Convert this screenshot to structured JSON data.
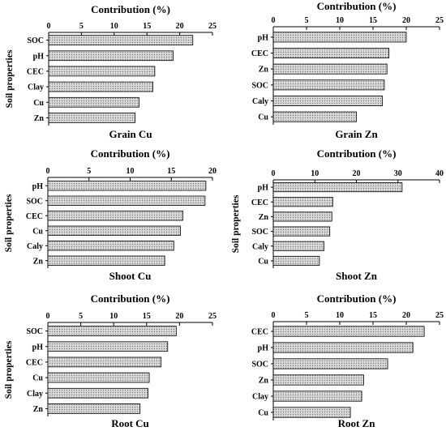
{
  "figure": {
    "panel_order_note": ""
  },
  "chart_data": [
    {
      "type": "bar",
      "orientation": "horizontal",
      "title": "Contribution (%)",
      "xlabel": "Grain Cu",
      "ylabel": "Soil properties",
      "categories": [
        "SOC",
        "pH",
        "CEC",
        "Clay",
        "Cu",
        "Zn"
      ],
      "values": [
        22,
        19,
        16.2,
        15.9,
        13.8,
        13.2
      ],
      "xlim": [
        0,
        25
      ],
      "xticks": [
        0,
        5,
        10,
        15,
        20,
        25
      ],
      "grid": false,
      "legend": "none"
    },
    {
      "type": "bar",
      "orientation": "horizontal",
      "title": "Contribution (%)",
      "xlabel": "Grain Zn",
      "ylabel": "",
      "categories": [
        "pH",
        "CEC",
        "Zn",
        "SOC",
        "Caly",
        "Cu"
      ],
      "values": [
        20,
        17.4,
        17.1,
        16.7,
        16.4,
        12.5
      ],
      "xlim": [
        0,
        25
      ],
      "xticks": [
        0,
        5,
        10,
        15,
        20,
        25
      ],
      "grid": false,
      "legend": "none"
    },
    {
      "type": "bar",
      "orientation": "horizontal",
      "title": "Contribution (%)",
      "xlabel": "Shoot Cu",
      "ylabel": "Soil properties",
      "categories": [
        "pH",
        "SOC",
        "CEC",
        "Cu",
        "Caly",
        "Zn"
      ],
      "values": [
        19.2,
        19.1,
        16.4,
        16.1,
        15.3,
        14.2
      ],
      "xlim": [
        0,
        20
      ],
      "xticks": [
        0,
        5,
        10,
        15,
        20
      ],
      "grid": false,
      "legend": "none"
    },
    {
      "type": "bar",
      "orientation": "horizontal",
      "title": "Contribution (%)",
      "xlabel": "Shoot Zn",
      "ylabel": "Soil properties",
      "categories": [
        "pH",
        "CEC",
        "Zn",
        "SOC",
        "Caly",
        "Cu"
      ],
      "values": [
        31,
        14.3,
        14.1,
        13.6,
        12.2,
        11.1
      ],
      "xlim": [
        0,
        40
      ],
      "xticks": [
        0,
        10,
        20,
        30,
        40
      ],
      "grid": false,
      "legend": "none"
    },
    {
      "type": "bar",
      "orientation": "horizontal",
      "title": "Contribution (%)",
      "xlabel": "Root Cu",
      "ylabel": "Soil properties",
      "categories": [
        "SOC",
        "pH",
        "CEC",
        "Cu",
        "Clay",
        "Zn"
      ],
      "values": [
        19.5,
        18.2,
        17.2,
        15.4,
        15.2,
        14
      ],
      "xlim": [
        0,
        25
      ],
      "xticks": [
        0,
        5,
        10,
        15,
        20,
        25
      ],
      "grid": false,
      "legend": "none"
    },
    {
      "type": "bar",
      "orientation": "horizontal",
      "title": "Contribution (%)",
      "xlabel": "Root Zn",
      "ylabel": "",
      "categories": [
        "CEC",
        "pH",
        "SOC",
        "Zn",
        "Clay",
        "Cu"
      ],
      "values": [
        22.7,
        21,
        17.2,
        13.6,
        13.3,
        11.6
      ],
      "xlim": [
        0,
        25
      ],
      "xticks": [
        0,
        5,
        10,
        15,
        20,
        25
      ],
      "grid": false,
      "legend": "none"
    }
  ],
  "colors": {
    "bar_fill": "#d9d9d9",
    "bar_pattern_dot": "#7a7a7a",
    "bar_stroke": "#000000",
    "axis": "#000000"
  }
}
